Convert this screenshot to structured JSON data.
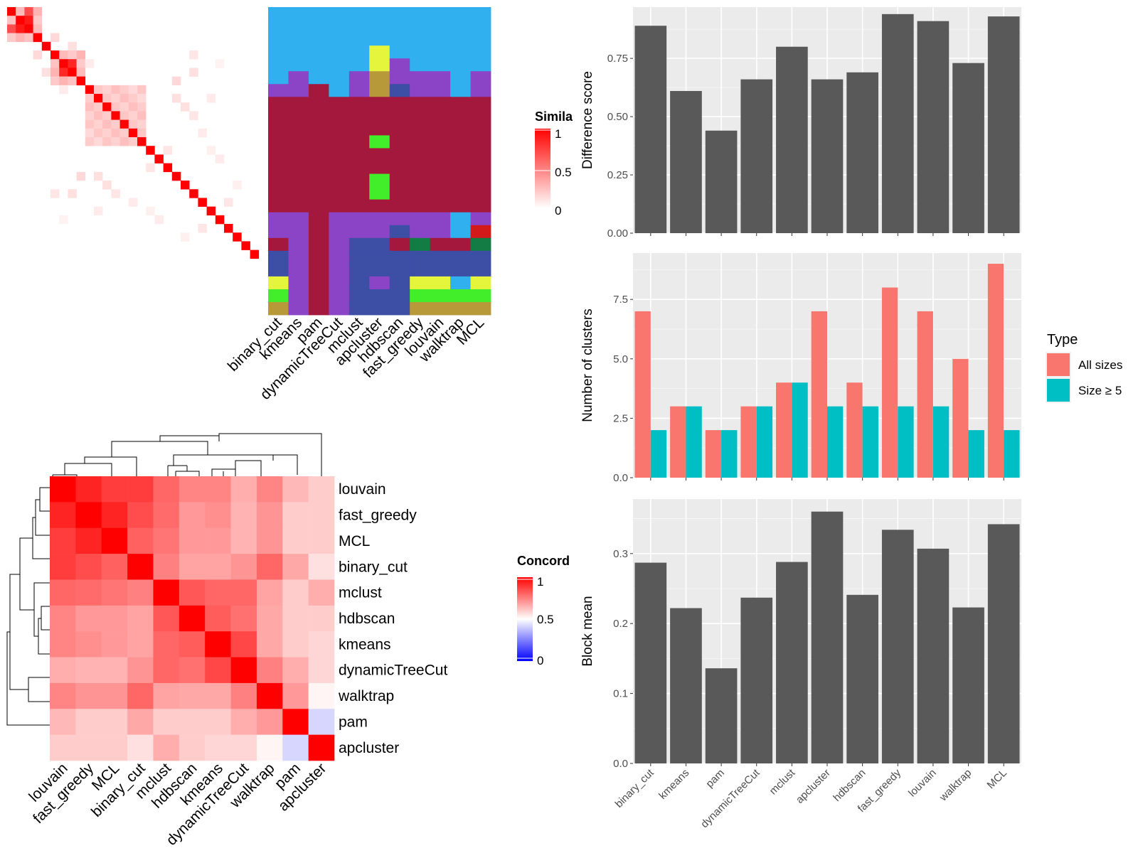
{
  "chart_data": [
    {
      "id": "similarity_heatmap",
      "type": "heatmap",
      "legend_title": "Simila",
      "legend_ticks": [
        "1",
        "0.5",
        "0"
      ],
      "scale": {
        "low": "#ffffff",
        "high": "#ff0000",
        "min": 0,
        "max": 1
      },
      "size": 29,
      "blocks": [
        {
          "start": 0,
          "end": 3,
          "value": 0.3
        },
        {
          "start": 5,
          "end": 8,
          "value": 0.3
        },
        {
          "start": 9,
          "end": 15,
          "value": 0.25
        }
      ],
      "sparse": [
        {
          "row": 0,
          "col": 2,
          "value": 0.7
        },
        {
          "row": 1,
          "col": 2,
          "value": 0.9
        },
        {
          "row": 6,
          "col": 7,
          "value": 0.85
        },
        {
          "row": 3,
          "col": 5,
          "value": 0.15
        },
        {
          "row": 4,
          "col": 7,
          "value": 0.12
        },
        {
          "row": 6,
          "col": 9,
          "value": 0.08
        },
        {
          "row": 12,
          "col": 21,
          "value": 0.1
        },
        {
          "row": 10,
          "col": 23,
          "value": 0.08
        },
        {
          "row": 7,
          "col": 21,
          "value": 0.12
        },
        {
          "row": 16,
          "col": 18,
          "value": 0.1
        },
        {
          "row": 17,
          "col": 24,
          "value": 0.08
        },
        {
          "row": 20,
          "col": 26,
          "value": 0.06
        },
        {
          "row": 22,
          "col": 25,
          "value": 0.1
        },
        {
          "row": 19,
          "col": 8,
          "value": 0.15
        },
        {
          "row": 19,
          "col": 10,
          "value": 0.12
        },
        {
          "row": 20,
          "col": 11,
          "value": 0.12
        },
        {
          "row": 21,
          "col": 5,
          "value": 0.1
        },
        {
          "row": 22,
          "col": 14,
          "value": 0.08
        },
        {
          "row": 24,
          "col": 6,
          "value": 0.05
        },
        {
          "row": 23,
          "col": 16,
          "value": 0.06
        }
      ]
    },
    {
      "id": "cluster_assignments",
      "type": "heatmap",
      "methods": [
        "binary_cut",
        "kmeans",
        "pam",
        "dynamicTreeCut",
        "mclust",
        "apcluster",
        "hdbscan",
        "fast_greedy",
        "louvain",
        "walktrap",
        "MCL"
      ],
      "palette": {
        "A": "#31b0f0",
        "B": "#8c44c6",
        "C": "#a4183e",
        "D": "#3d4fa5",
        "E": "#e5f53c",
        "F": "#42ed2a",
        "G": "#b8993a",
        "H": "#137c45",
        "I": "#d31a1a"
      },
      "rows": [
        "AAAAAAAAAAA",
        "AAAAAAAAAAA",
        "AAAAAAAAAAA",
        "AAAAAEAAAAA",
        "AAAAAEBAAAA",
        "ABAABGBBBAB",
        "BBCABGDBBAB",
        "CCCCCCCCCCC",
        "CCCCCCCCCCC",
        "CCCCCCCCCCC",
        "CCCCCFCCCCC",
        "CCCCCCCCCCC",
        "CCCCCCCCCCC",
        "CCCCCFCCCCC",
        "CCCCCFCCCCC",
        "CCCCCCCCCCC",
        "BBCBBBBBBAB",
        "BBCBBBDBBAI",
        "CBCBDDCHCCH",
        "DBCBDDDDDDD",
        "DBCBDDDDDDD",
        "EBCBDBDEEAE",
        "FBCBDDDFFFF",
        "GBCBDDDGGGG"
      ]
    },
    {
      "id": "concordance_heatmap",
      "type": "heatmap",
      "legend_title": "Concord",
      "legend_ticks": [
        "1",
        "0.5",
        "0"
      ],
      "scale": {
        "low": "#0000ff",
        "mid": "#ffffff",
        "high": "#ff0000",
        "min": 0,
        "max": 1
      },
      "labels": [
        "louvain",
        "fast_greedy",
        "MCL",
        "binary_cut",
        "mclust",
        "hdbscan",
        "kmeans",
        "dynamicTreeCut",
        "walktrap",
        "pam",
        "apcluster"
      ],
      "values": [
        [
          1.0,
          0.93,
          0.88,
          0.88,
          0.8,
          0.74,
          0.74,
          0.66,
          0.74,
          0.64,
          0.6
        ],
        [
          0.93,
          1.0,
          0.93,
          0.85,
          0.79,
          0.7,
          0.72,
          0.65,
          0.71,
          0.6,
          0.6
        ],
        [
          0.88,
          0.93,
          1.0,
          0.81,
          0.77,
          0.7,
          0.7,
          0.65,
          0.71,
          0.6,
          0.6
        ],
        [
          0.88,
          0.85,
          0.81,
          1.0,
          0.75,
          0.68,
          0.68,
          0.71,
          0.8,
          0.67,
          0.56
        ],
        [
          0.8,
          0.79,
          0.77,
          0.75,
          1.0,
          0.83,
          0.8,
          0.8,
          0.68,
          0.6,
          0.66
        ],
        [
          0.74,
          0.7,
          0.7,
          0.68,
          0.83,
          1.0,
          0.82,
          0.78,
          0.67,
          0.6,
          0.6
        ],
        [
          0.74,
          0.72,
          0.7,
          0.68,
          0.8,
          0.82,
          1.0,
          0.86,
          0.67,
          0.6,
          0.58
        ],
        [
          0.66,
          0.65,
          0.65,
          0.71,
          0.8,
          0.78,
          0.86,
          1.0,
          0.75,
          0.66,
          0.58
        ],
        [
          0.74,
          0.71,
          0.71,
          0.8,
          0.68,
          0.67,
          0.67,
          0.75,
          1.0,
          0.7,
          0.52
        ],
        [
          0.64,
          0.6,
          0.6,
          0.67,
          0.6,
          0.6,
          0.6,
          0.66,
          0.7,
          1.0,
          0.42
        ],
        [
          0.6,
          0.6,
          0.6,
          0.56,
          0.66,
          0.6,
          0.58,
          0.58,
          0.52,
          0.42,
          1.0
        ]
      ]
    },
    {
      "id": "difference_score",
      "type": "bar",
      "ylabel": "Difference score",
      "ylim": [
        0,
        0.97
      ],
      "yticks": [
        "0.00",
        "0.25",
        "0.50",
        "0.75"
      ],
      "categories": [
        "binary_cut",
        "kmeans",
        "pam",
        "dynamicTreeCut",
        "mclust",
        "apcluster",
        "hdbscan",
        "fast_greedy",
        "louvain",
        "walktrap",
        "MCL"
      ],
      "values": [
        0.89,
        0.61,
        0.44,
        0.66,
        0.8,
        0.66,
        0.69,
        0.94,
        0.91,
        0.73,
        0.93
      ]
    },
    {
      "id": "number_of_clusters",
      "type": "bar",
      "ylabel": "Number of clusters",
      "ylim": [
        0,
        9.45
      ],
      "yticks": [
        "0.0",
        "2.5",
        "5.0",
        "7.5"
      ],
      "categories": [
        "binary_cut",
        "kmeans",
        "pam",
        "dynamicTreeCut",
        "mclust",
        "apcluster",
        "hdbscan",
        "fast_greedy",
        "louvain",
        "walktrap",
        "MCL"
      ],
      "series": [
        {
          "name": "All sizes",
          "color": "#f8766d",
          "values": [
            7,
            3,
            2,
            3,
            4,
            7,
            4,
            8,
            7,
            5,
            9
          ]
        },
        {
          "name": "Size ≥ 5",
          "color": "#00bfc4",
          "values": [
            2,
            3,
            2,
            3,
            4,
            3,
            3,
            3,
            3,
            2,
            2
          ]
        }
      ],
      "legend_title": "Type"
    },
    {
      "id": "block_mean",
      "type": "bar",
      "ylabel": "Block mean",
      "ylim": [
        0,
        0.378
      ],
      "yticks": [
        "0.0",
        "0.1",
        "0.2",
        "0.3"
      ],
      "categories": [
        "binary_cut",
        "kmeans",
        "pam",
        "dynamicTreeCut",
        "mclust",
        "apcluster",
        "hdbscan",
        "fast_greedy",
        "louvain",
        "walktrap",
        "MCL"
      ],
      "values": [
        0.287,
        0.222,
        0.136,
        0.237,
        0.288,
        0.36,
        0.241,
        0.334,
        0.307,
        0.223,
        0.342
      ]
    }
  ]
}
